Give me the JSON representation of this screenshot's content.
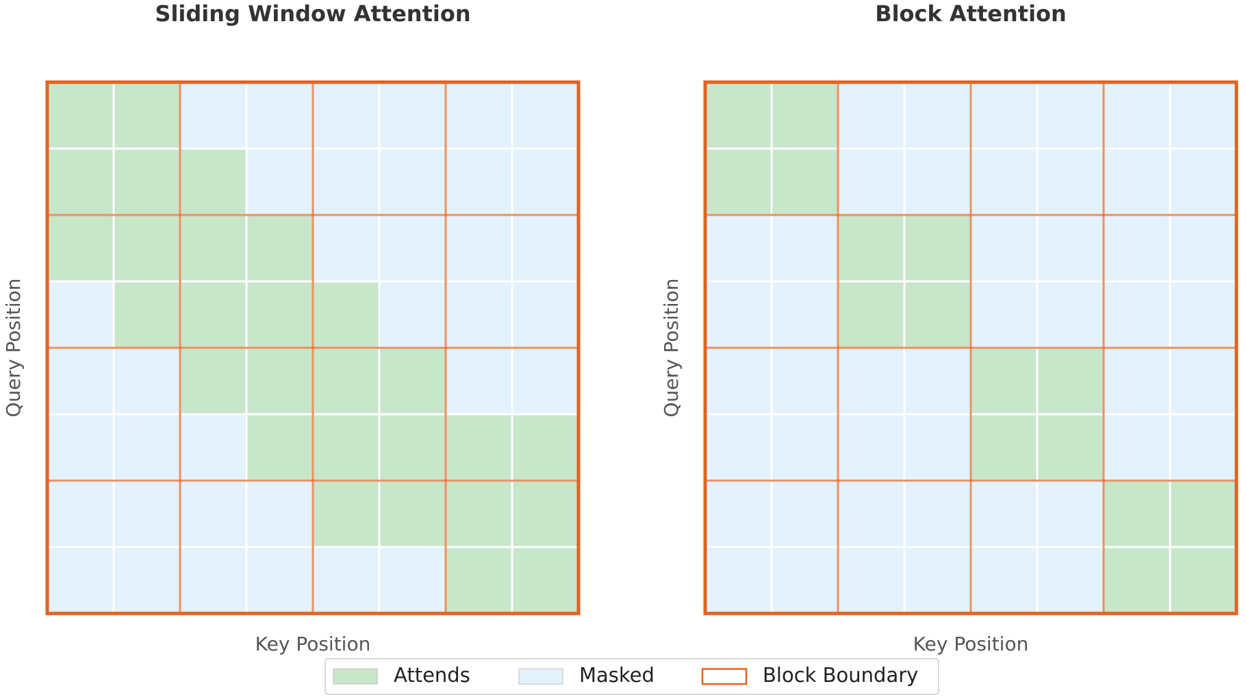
{
  "panels": [
    {
      "title": "Sliding Window Attention",
      "x_label": "Key Position",
      "y_label": "Query Position",
      "mask": [
        [
          1,
          1,
          0,
          0,
          0,
          0,
          0,
          0
        ],
        [
          1,
          1,
          1,
          0,
          0,
          0,
          0,
          0
        ],
        [
          1,
          1,
          1,
          1,
          0,
          0,
          0,
          0
        ],
        [
          0,
          1,
          1,
          1,
          1,
          0,
          0,
          0
        ],
        [
          0,
          0,
          1,
          1,
          1,
          1,
          0,
          0
        ],
        [
          0,
          0,
          0,
          1,
          1,
          1,
          1,
          1
        ],
        [
          0,
          0,
          0,
          0,
          1,
          1,
          1,
          1
        ],
        [
          0,
          0,
          0,
          0,
          0,
          0,
          1,
          1
        ]
      ]
    },
    {
      "title": "Block Attention",
      "x_label": "Key Position",
      "y_label": "Query Position",
      "mask": [
        [
          1,
          1,
          0,
          0,
          0,
          0,
          0,
          0
        ],
        [
          1,
          1,
          0,
          0,
          0,
          0,
          0,
          0
        ],
        [
          0,
          0,
          1,
          1,
          0,
          0,
          0,
          0
        ],
        [
          0,
          0,
          1,
          1,
          0,
          0,
          0,
          0
        ],
        [
          0,
          0,
          0,
          0,
          1,
          1,
          0,
          0
        ],
        [
          0,
          0,
          0,
          0,
          1,
          1,
          0,
          0
        ],
        [
          0,
          0,
          0,
          0,
          0,
          0,
          1,
          1
        ],
        [
          0,
          0,
          0,
          0,
          0,
          0,
          1,
          1
        ]
      ]
    }
  ],
  "block_size": 2,
  "legend": [
    {
      "label": "Attends",
      "color": "#c8e6c9"
    },
    {
      "label": "Masked",
      "color": "#e3f2fd"
    },
    {
      "label": "Block Boundary",
      "color": "#e4621f"
    }
  ]
}
